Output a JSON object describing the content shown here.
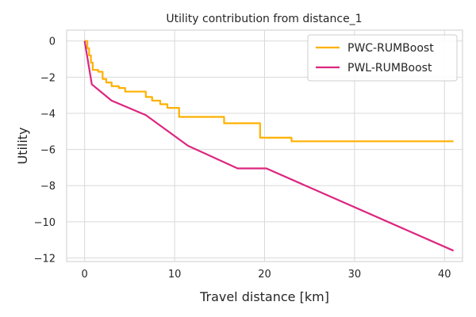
{
  "chart_data": {
    "type": "line",
    "title": "Utility contribution from distance_1",
    "xlabel": "Travel distance [km]",
    "ylabel": "Utility",
    "xlim": [
      -2,
      42
    ],
    "ylim": [
      -12.2,
      0.6
    ],
    "xticks": [
      0,
      10,
      20,
      30,
      40
    ],
    "yticks": [
      0,
      -2,
      -4,
      -6,
      -8,
      -10,
      -12
    ],
    "xtick_labels": [
      "0",
      "10",
      "20",
      "30",
      "40"
    ],
    "ytick_labels": [
      "0",
      "−2",
      "−4",
      "−6",
      "−8",
      "−10",
      "−12"
    ],
    "grid": true,
    "legend_position": "top-right",
    "series": [
      {
        "name": "PWC-RUMBoost",
        "color": "#FFB000",
        "step": true,
        "points": [
          [
            0,
            0
          ],
          [
            0.3,
            -0.4
          ],
          [
            0.5,
            -0.8
          ],
          [
            0.7,
            -1.2
          ],
          [
            0.9,
            -1.6
          ],
          [
            1.5,
            -1.7
          ],
          [
            2.0,
            -2.1
          ],
          [
            2.4,
            -2.3
          ],
          [
            3.0,
            -2.5
          ],
          [
            3.8,
            -2.6
          ],
          [
            4.5,
            -2.8
          ],
          [
            6.8,
            -3.1
          ],
          [
            7.5,
            -3.3
          ],
          [
            8.4,
            -3.5
          ],
          [
            9.2,
            -3.7
          ],
          [
            10.5,
            -4.2
          ],
          [
            12.5,
            -4.2
          ],
          [
            15.5,
            -4.55
          ],
          [
            19.5,
            -5.35
          ],
          [
            23,
            -5.55
          ],
          [
            41,
            -5.55
          ]
        ]
      },
      {
        "name": "PWL-RUMBoost",
        "color": "#DC267F",
        "step": false,
        "points": [
          [
            0,
            0
          ],
          [
            0.8,
            -2.4
          ],
          [
            3,
            -3.3
          ],
          [
            6.8,
            -4.1
          ],
          [
            11.5,
            -5.8
          ],
          [
            17,
            -7.05
          ],
          [
            20.2,
            -7.05
          ],
          [
            41,
            -11.6
          ]
        ]
      }
    ]
  }
}
